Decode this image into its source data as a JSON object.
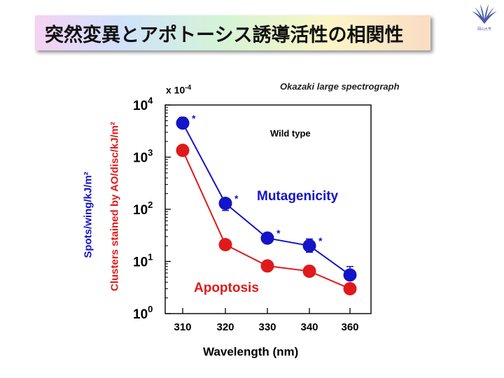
{
  "slide": {
    "title": "突然変異とアポトーシス誘導活性の相関性",
    "logo_caption": "岡山大学"
  },
  "colors": {
    "blue": "#1414c8",
    "red": "#e01a1a"
  },
  "chart_data": {
    "type": "line",
    "x": [
      310,
      320,
      330,
      340,
      360
    ],
    "xticklabels": [
      "310",
      "320",
      "330",
      "340",
      "360"
    ],
    "xlabel": "Wavelength (nm)",
    "ylabel_blue": "Spots/wing/kJ/m²",
    "ylabel_red": "Clusters stained by AO/disc/kJ/m²",
    "yscale": "log",
    "ylim": [
      1,
      10000
    ],
    "y_multiplier": "x 10-4",
    "yticks": [
      {
        "value": 1,
        "base": "10",
        "exp": "0"
      },
      {
        "value": 10,
        "base": "10",
        "exp": "1"
      },
      {
        "value": 100,
        "base": "10",
        "exp": "2"
      },
      {
        "value": 1000,
        "base": "10",
        "exp": "3"
      },
      {
        "value": 10000,
        "base": "10",
        "exp": "4"
      }
    ],
    "series": [
      {
        "name": "Mutagenicity",
        "color": "#1414c8",
        "values": [
          4500,
          130,
          28,
          20,
          5.5
        ],
        "error_upper": [
          5800,
          160,
          33,
          27,
          8
        ],
        "error_lower": [
          3800,
          95,
          24,
          15,
          4.5
        ],
        "significant": [
          "*",
          "*",
          "*",
          "*",
          ""
        ]
      },
      {
        "name": "Apoptosis",
        "color": "#e01a1a",
        "values": [
          1350,
          21,
          8.2,
          6.5,
          3.0
        ]
      }
    ],
    "annotations": {
      "strain": "Wild type",
      "instrument": "Okazaki large spectrograph"
    }
  }
}
